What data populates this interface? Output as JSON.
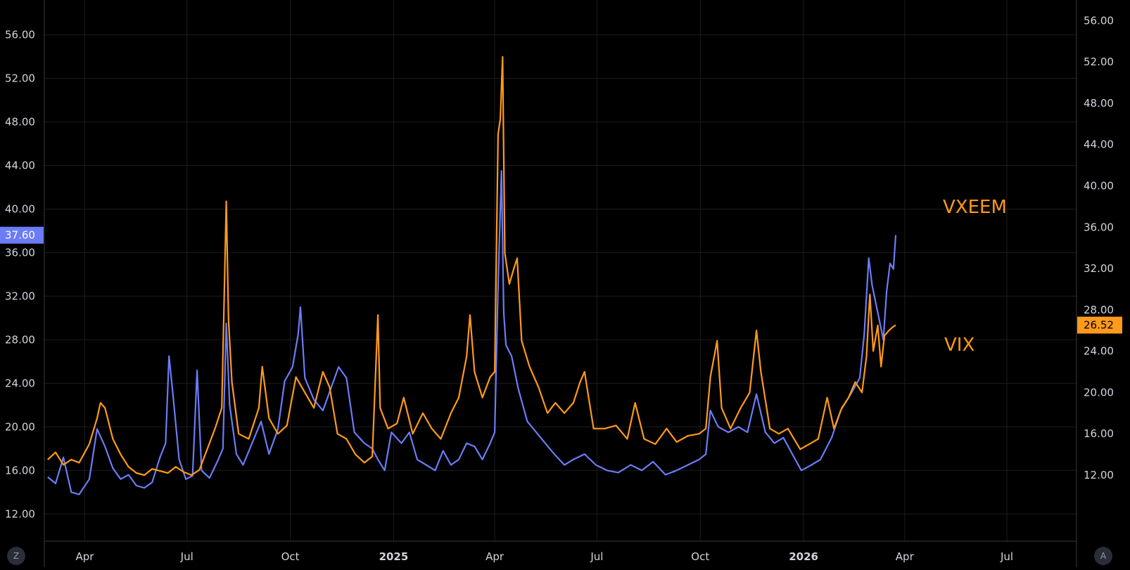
{
  "chart_data": {
    "type": "line",
    "title": "",
    "grid": true,
    "colors": {
      "background": "#000000",
      "grid": "#1c1c1c",
      "axis_text": "#d1d4dc",
      "border": "#3a3a3a"
    },
    "x_ticks": [
      {
        "label": "Apr",
        "date": "2024-04-01"
      },
      {
        "label": "Jul",
        "date": "2024-07-01"
      },
      {
        "label": "Oct",
        "date": "2024-10-01"
      },
      {
        "label": "2025",
        "date": "2025-01-01",
        "bold": true
      },
      {
        "label": "Apr",
        "date": "2025-04-01"
      },
      {
        "label": "Jul",
        "date": "2025-07-01"
      },
      {
        "label": "Oct",
        "date": "2025-10-01"
      },
      {
        "label": "2026",
        "date": "2026-01-01",
        "bold": true
      },
      {
        "label": "Apr",
        "date": "2026-04-01"
      },
      {
        "label": "Jul",
        "date": "2026-07-01"
      }
    ],
    "x_range": [
      "2024-02-25",
      "2026-09-01"
    ],
    "left_axis": {
      "ylim": [
        9.5,
        59.2
      ],
      "ticks": [
        "12.00",
        "16.00",
        "20.00",
        "24.00",
        "28.00",
        "32.00",
        "36.00",
        "40.00",
        "44.00",
        "48.00",
        "52.00",
        "56.00"
      ],
      "last_value_label": "37.60",
      "last_value_color": "#6b7cf6"
    },
    "right_axis": {
      "ylim": [
        5.6,
        58.0
      ],
      "ticks": [
        "12.00",
        "16.00",
        "20.00",
        "24.00",
        "28.00",
        "32.00",
        "36.00",
        "40.00",
        "44.00",
        "48.00",
        "52.00",
        "56.00"
      ],
      "last_value_label": "26.52",
      "last_value_color": "#ff9a1a"
    },
    "series": [
      {
        "name": "VXEEM",
        "axis": "left",
        "color": "#6b7cf6",
        "points": [
          [
            "2024-02-28",
            15.4
          ],
          [
            "2024-03-06",
            14.8
          ],
          [
            "2024-03-13",
            17.2
          ],
          [
            "2024-03-20",
            14.0
          ],
          [
            "2024-03-27",
            13.8
          ],
          [
            "2024-04-05",
            15.2
          ],
          [
            "2024-04-12",
            19.8
          ],
          [
            "2024-04-19",
            18.2
          ],
          [
            "2024-04-26",
            16.2
          ],
          [
            "2024-05-03",
            15.2
          ],
          [
            "2024-05-10",
            15.6
          ],
          [
            "2024-05-17",
            14.6
          ],
          [
            "2024-05-24",
            14.4
          ],
          [
            "2024-05-31",
            14.9
          ],
          [
            "2024-06-07",
            17.2
          ],
          [
            "2024-06-12",
            18.5
          ],
          [
            "2024-06-15",
            26.5
          ],
          [
            "2024-06-18",
            23.5
          ],
          [
            "2024-06-24",
            17.0
          ],
          [
            "2024-06-30",
            15.2
          ],
          [
            "2024-07-06",
            15.5
          ],
          [
            "2024-07-10",
            25.2
          ],
          [
            "2024-07-14",
            16.0
          ],
          [
            "2024-07-21",
            15.3
          ],
          [
            "2024-07-28",
            16.8
          ],
          [
            "2024-08-02",
            18.0
          ],
          [
            "2024-08-05",
            29.5
          ],
          [
            "2024-08-08",
            22.0
          ],
          [
            "2024-08-14",
            17.5
          ],
          [
            "2024-08-20",
            16.5
          ],
          [
            "2024-08-28",
            18.5
          ],
          [
            "2024-09-05",
            20.5
          ],
          [
            "2024-09-12",
            17.5
          ],
          [
            "2024-09-20",
            19.8
          ],
          [
            "2024-09-26",
            24.2
          ],
          [
            "2024-10-03",
            25.5
          ],
          [
            "2024-10-08",
            28.5
          ],
          [
            "2024-10-10",
            31.0
          ],
          [
            "2024-10-14",
            24.5
          ],
          [
            "2024-10-22",
            22.5
          ],
          [
            "2024-10-30",
            21.5
          ],
          [
            "2024-11-06",
            23.5
          ],
          [
            "2024-11-13",
            25.5
          ],
          [
            "2024-11-20",
            24.5
          ],
          [
            "2024-11-27",
            19.5
          ],
          [
            "2024-12-06",
            18.5
          ],
          [
            "2024-12-13",
            18.0
          ],
          [
            "2024-12-18",
            17.0
          ],
          [
            "2024-12-24",
            16.0
          ],
          [
            "2024-12-30",
            19.5
          ],
          [
            "2025-01-08",
            18.5
          ],
          [
            "2025-01-15",
            19.5
          ],
          [
            "2025-01-22",
            17.0
          ],
          [
            "2025-01-30",
            16.5
          ],
          [
            "2025-02-07",
            16.0
          ],
          [
            "2025-02-14",
            17.8
          ],
          [
            "2025-02-21",
            16.5
          ],
          [
            "2025-02-28",
            17.0
          ],
          [
            "2025-03-07",
            18.5
          ],
          [
            "2025-03-14",
            18.2
          ],
          [
            "2025-03-21",
            17.0
          ],
          [
            "2025-03-28",
            18.5
          ],
          [
            "2025-04-01",
            19.5
          ],
          [
            "2025-04-04",
            33.0
          ],
          [
            "2025-04-07",
            43.5
          ],
          [
            "2025-04-09",
            30.5
          ],
          [
            "2025-04-11",
            27.5
          ],
          [
            "2025-04-16",
            26.5
          ],
          [
            "2025-04-22",
            23.5
          ],
          [
            "2025-04-30",
            20.5
          ],
          [
            "2025-05-08",
            19.5
          ],
          [
            "2025-05-16",
            18.5
          ],
          [
            "2025-05-24",
            17.5
          ],
          [
            "2025-06-02",
            16.5
          ],
          [
            "2025-06-10",
            17.0
          ],
          [
            "2025-06-20",
            17.5
          ],
          [
            "2025-06-30",
            16.5
          ],
          [
            "2025-07-10",
            16.0
          ],
          [
            "2025-07-20",
            15.8
          ],
          [
            "2025-07-31",
            16.5
          ],
          [
            "2025-08-10",
            16.0
          ],
          [
            "2025-08-20",
            16.8
          ],
          [
            "2025-08-31",
            15.6
          ],
          [
            "2025-09-10",
            16.0
          ],
          [
            "2025-09-20",
            16.5
          ],
          [
            "2025-09-30",
            17.0
          ],
          [
            "2025-10-06",
            17.5
          ],
          [
            "2025-10-10",
            21.5
          ],
          [
            "2025-10-17",
            20.0
          ],
          [
            "2025-10-26",
            19.5
          ],
          [
            "2025-11-04",
            20.0
          ],
          [
            "2025-11-12",
            19.5
          ],
          [
            "2025-11-20",
            23.0
          ],
          [
            "2025-11-28",
            19.5
          ],
          [
            "2025-12-06",
            18.5
          ],
          [
            "2025-12-14",
            19.0
          ],
          [
            "2025-12-22",
            17.5
          ],
          [
            "2025-12-30",
            16.0
          ],
          [
            "2026-01-08",
            16.5
          ],
          [
            "2026-01-16",
            17.0
          ],
          [
            "2026-01-26",
            19.0
          ],
          [
            "2026-02-03",
            21.5
          ],
          [
            "2026-02-12",
            23.0
          ],
          [
            "2026-02-20",
            24.5
          ],
          [
            "2026-02-24",
            28.5
          ],
          [
            "2026-02-28",
            35.5
          ],
          [
            "2026-03-03",
            33.0
          ],
          [
            "2026-03-08",
            30.5
          ],
          [
            "2026-03-13",
            28.0
          ],
          [
            "2026-03-16",
            32.5
          ],
          [
            "2026-03-19",
            35.0
          ],
          [
            "2026-03-22",
            34.5
          ],
          [
            "2026-03-24",
            37.6
          ]
        ]
      },
      {
        "name": "VIX",
        "axis": "right",
        "color": "#ff9a1a",
        "points": [
          [
            "2024-02-28",
            13.5
          ],
          [
            "2024-03-06",
            14.2
          ],
          [
            "2024-03-13",
            13.0
          ],
          [
            "2024-03-20",
            13.5
          ],
          [
            "2024-03-27",
            13.2
          ],
          [
            "2024-04-05",
            15.0
          ],
          [
            "2024-04-12",
            17.5
          ],
          [
            "2024-04-15",
            19.0
          ],
          [
            "2024-04-19",
            18.5
          ],
          [
            "2024-04-26",
            15.5
          ],
          [
            "2024-05-03",
            14.0
          ],
          [
            "2024-05-10",
            12.8
          ],
          [
            "2024-05-17",
            12.2
          ],
          [
            "2024-05-24",
            12.0
          ],
          [
            "2024-05-31",
            12.6
          ],
          [
            "2024-06-07",
            12.4
          ],
          [
            "2024-06-14",
            12.2
          ],
          [
            "2024-06-21",
            12.8
          ],
          [
            "2024-06-28",
            12.3
          ],
          [
            "2024-07-05",
            12.0
          ],
          [
            "2024-07-12",
            12.5
          ],
          [
            "2024-07-19",
            14.5
          ],
          [
            "2024-07-26",
            16.5
          ],
          [
            "2024-08-01",
            18.5
          ],
          [
            "2024-08-05",
            38.5
          ],
          [
            "2024-08-07",
            27.0
          ],
          [
            "2024-08-10",
            21.0
          ],
          [
            "2024-08-16",
            16.0
          ],
          [
            "2024-08-25",
            15.5
          ],
          [
            "2024-09-03",
            18.5
          ],
          [
            "2024-09-06",
            22.5
          ],
          [
            "2024-09-12",
            17.5
          ],
          [
            "2024-09-20",
            16.0
          ],
          [
            "2024-09-28",
            16.8
          ],
          [
            "2024-10-06",
            21.5
          ],
          [
            "2024-10-14",
            20.0
          ],
          [
            "2024-10-22",
            18.5
          ],
          [
            "2024-10-30",
            22.0
          ],
          [
            "2024-11-05",
            20.5
          ],
          [
            "2024-11-12",
            16.0
          ],
          [
            "2024-11-20",
            15.5
          ],
          [
            "2024-11-28",
            14.0
          ],
          [
            "2024-12-06",
            13.2
          ],
          [
            "2024-12-13",
            13.8
          ],
          [
            "2024-12-18",
            27.5
          ],
          [
            "2024-12-20",
            18.5
          ],
          [
            "2024-12-27",
            16.5
          ],
          [
            "2025-01-04",
            17.0
          ],
          [
            "2025-01-10",
            19.5
          ],
          [
            "2025-01-18",
            16.0
          ],
          [
            "2025-01-27",
            18.0
          ],
          [
            "2025-02-04",
            16.5
          ],
          [
            "2025-02-12",
            15.5
          ],
          [
            "2025-02-21",
            18.0
          ],
          [
            "2025-02-28",
            19.5
          ],
          [
            "2025-03-07",
            23.5
          ],
          [
            "2025-03-10",
            27.5
          ],
          [
            "2025-03-14",
            22.0
          ],
          [
            "2025-03-21",
            19.5
          ],
          [
            "2025-03-28",
            21.5
          ],
          [
            "2025-04-01",
            22.0
          ],
          [
            "2025-04-04",
            45.0
          ],
          [
            "2025-04-06",
            46.5
          ],
          [
            "2025-04-08",
            52.5
          ],
          [
            "2025-04-10",
            33.5
          ],
          [
            "2025-04-14",
            30.5
          ],
          [
            "2025-04-18",
            32.0
          ],
          [
            "2025-04-21",
            33.0
          ],
          [
            "2025-04-25",
            25.0
          ],
          [
            "2025-05-02",
            22.5
          ],
          [
            "2025-05-10",
            20.5
          ],
          [
            "2025-05-18",
            18.0
          ],
          [
            "2025-05-25",
            19.0
          ],
          [
            "2025-06-02",
            18.0
          ],
          [
            "2025-06-10",
            19.0
          ],
          [
            "2025-06-16",
            21.0
          ],
          [
            "2025-06-20",
            22.0
          ],
          [
            "2025-06-28",
            16.5
          ],
          [
            "2025-07-08",
            16.5
          ],
          [
            "2025-07-18",
            16.8
          ],
          [
            "2025-07-28",
            15.5
          ],
          [
            "2025-08-04",
            19.0
          ],
          [
            "2025-08-12",
            15.5
          ],
          [
            "2025-08-22",
            15.0
          ],
          [
            "2025-09-01",
            16.5
          ],
          [
            "2025-09-10",
            15.2
          ],
          [
            "2025-09-20",
            15.8
          ],
          [
            "2025-09-30",
            16.0
          ],
          [
            "2025-10-06",
            16.5
          ],
          [
            "2025-10-10",
            21.5
          ],
          [
            "2025-10-16",
            25.0
          ],
          [
            "2025-10-20",
            18.5
          ],
          [
            "2025-10-28",
            16.5
          ],
          [
            "2025-11-06",
            18.5
          ],
          [
            "2025-11-14",
            20.0
          ],
          [
            "2025-11-20",
            26.0
          ],
          [
            "2025-11-24",
            22.0
          ],
          [
            "2025-12-02",
            16.5
          ],
          [
            "2025-12-10",
            16.0
          ],
          [
            "2025-12-18",
            16.5
          ],
          [
            "2025-12-29",
            14.5
          ],
          [
            "2026-01-06",
            15.0
          ],
          [
            "2026-01-14",
            15.5
          ],
          [
            "2026-01-22",
            19.5
          ],
          [
            "2026-01-28",
            16.5
          ],
          [
            "2026-02-04",
            18.5
          ],
          [
            "2026-02-10",
            19.5
          ],
          [
            "2026-02-16",
            21.0
          ],
          [
            "2026-02-22",
            20.0
          ],
          [
            "2026-02-26",
            23.5
          ],
          [
            "2026-03-01",
            29.5
          ],
          [
            "2026-03-04",
            24.0
          ],
          [
            "2026-03-08",
            26.5
          ],
          [
            "2026-03-11",
            22.5
          ],
          [
            "2026-03-14",
            25.5
          ],
          [
            "2026-03-18",
            26.0
          ],
          [
            "2026-03-21",
            26.3
          ],
          [
            "2026-03-24",
            26.52
          ]
        ]
      }
    ],
    "annotations": [
      {
        "text": "VXEEM",
        "color": "#ff9a1a"
      },
      {
        "text": "VIX",
        "color": "#ff9a1a"
      }
    ],
    "buttons": {
      "left": "Z",
      "right": "A"
    }
  }
}
